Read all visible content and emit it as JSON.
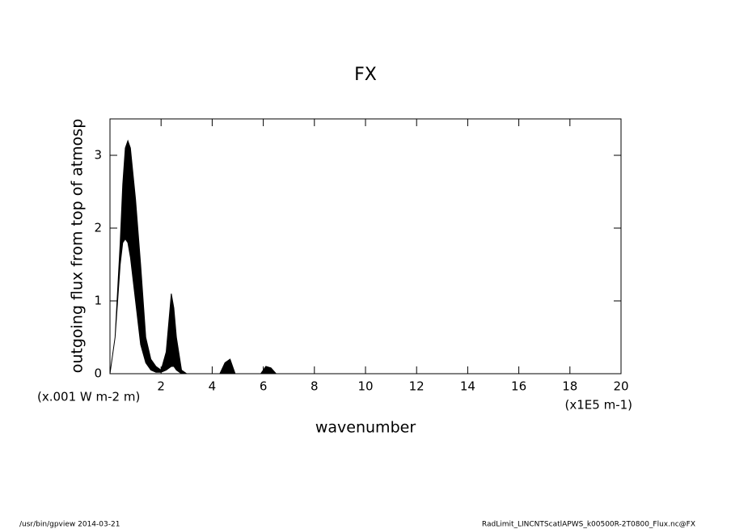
{
  "chart_data": {
    "type": "band",
    "title": "FX",
    "y_label": "outgoing flux from top of atmosp",
    "y_units": "(x.001 W m-2 m)",
    "x_label": "wavenumber",
    "x_units": "(x1E5 m-1)",
    "footer_left": "/usr/bin/gpview  2014-03-21",
    "footer_right": "RadLimit_LINCNTScatlAPWS_k00500R-2T0800_Flux.nc@FX",
    "x": [
      0,
      0.2,
      0.4,
      0.5,
      0.6,
      0.7,
      0.8,
      1.0,
      1.2,
      1.4,
      1.6,
      1.8,
      2.0,
      2.2,
      2.4,
      2.5,
      2.6,
      2.8,
      3.0,
      3.5,
      4.3,
      4.5,
      4.7,
      4.9,
      5.9,
      6.1,
      6.3,
      6.5,
      20
    ],
    "series": [
      {
        "color": "#000000",
        "values": [
          0,
          0.5,
          1.8,
          2.6,
          3.1,
          3.2,
          3.1,
          2.4,
          1.5,
          0.5,
          0.2,
          0.1,
          0.05,
          0.3,
          1.1,
          0.9,
          0.5,
          0.05,
          0,
          0,
          0,
          0.15,
          0.2,
          0,
          0,
          0.1,
          0.08,
          0,
          0
        ]
      },
      {
        "color": "#000000",
        "values": [
          0,
          0.5,
          1.5,
          1.8,
          1.85,
          1.8,
          1.6,
          1.0,
          0.4,
          0.15,
          0.05,
          0.02,
          0.02,
          0.05,
          0.1,
          0.1,
          0.05,
          0,
          0,
          0,
          0,
          0,
          0,
          0,
          0,
          0,
          0,
          0,
          0
        ]
      }
    ],
    "xlim": [
      0,
      20
    ],
    "xticks": [
      2,
      4,
      6,
      8,
      10,
      12,
      14,
      16,
      18,
      20
    ],
    "ylim": [
      0,
      3.5
    ],
    "yticks": [
      0,
      1,
      2,
      3
    ]
  }
}
